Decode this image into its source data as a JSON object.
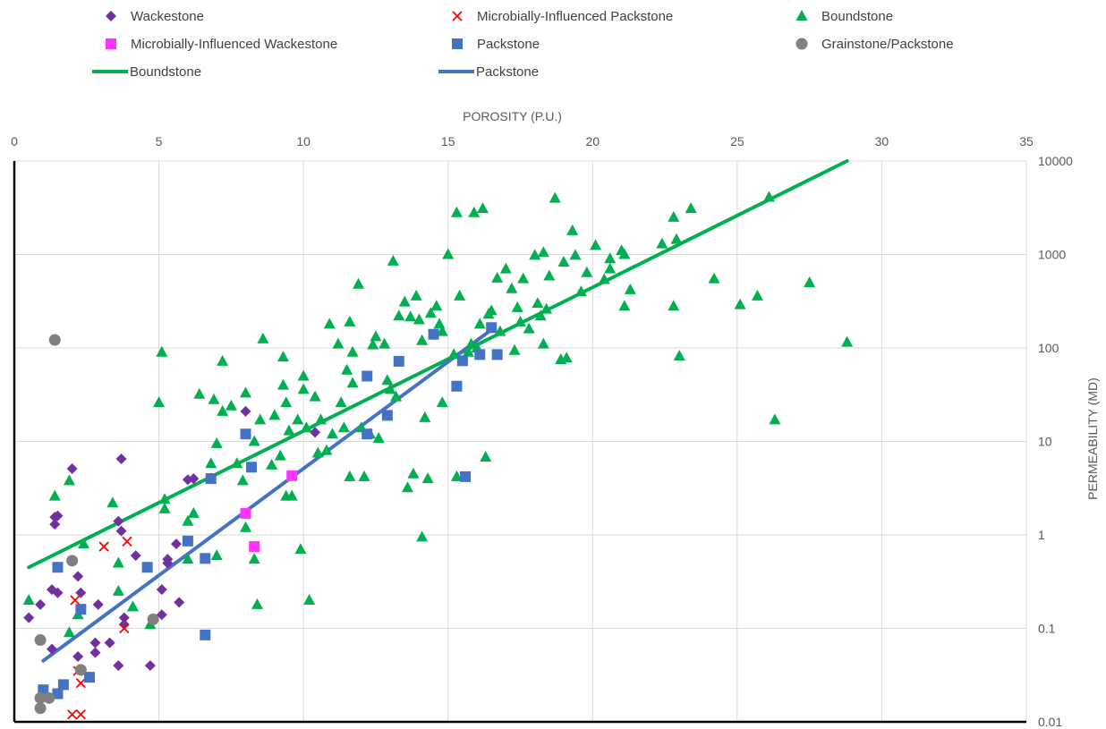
{
  "chart_data": {
    "type": "scatter",
    "title": "",
    "xlabel": "POROSITY (P.U.)",
    "ylabel": "PERMEABILITY (MD)",
    "xlim": [
      0,
      35
    ],
    "ylim": [
      0.01,
      10000
    ],
    "y_scale": "log",
    "x_axis_position": "top",
    "y_axis_position": "right",
    "grid": true,
    "legend_position": "top",
    "x_ticks": [
      "0",
      "5",
      "10",
      "15",
      "20",
      "25",
      "30",
      "35"
    ],
    "y_ticks": [
      "10000",
      "1000",
      "100",
      "10",
      "1",
      "0.1",
      "0.01"
    ],
    "colors": {
      "wackestone": "#7030A0",
      "mi_packstone": "#FF0000",
      "boundstone": "#00B050",
      "mi_wackestone": "#FF33FF",
      "packstone": "#4472C4",
      "grainstone_packstone": "#808080"
    },
    "series": [
      {
        "name": "Wackestone",
        "marker": "diamond",
        "color_key": "wackestone",
        "points": [
          [
            0.5,
            0.13
          ],
          [
            0.9,
            0.18
          ],
          [
            1.3,
            0.06
          ],
          [
            1.3,
            0.26
          ],
          [
            1.4,
            1.3
          ],
          [
            1.4,
            1.55
          ],
          [
            1.5,
            0.24
          ],
          [
            1.5,
            1.6
          ],
          [
            2,
            5.1
          ],
          [
            2.2,
            0.05
          ],
          [
            2.2,
            0.36
          ],
          [
            2.3,
            0.24
          ],
          [
            2.8,
            0.055
          ],
          [
            2.8,
            0.07
          ],
          [
            2.9,
            0.18
          ],
          [
            3.3,
            0.07
          ],
          [
            3.6,
            1.4
          ],
          [
            3.6,
            0.04
          ],
          [
            3.7,
            6.5
          ],
          [
            3.7,
            1.1
          ],
          [
            3.8,
            0.13
          ],
          [
            3.8,
            0.11
          ],
          [
            4.2,
            0.6
          ],
          [
            4.7,
            0.04
          ],
          [
            5.1,
            0.14
          ],
          [
            5.1,
            0.26
          ],
          [
            5.3,
            0.5
          ],
          [
            5.3,
            0.55
          ],
          [
            5.6,
            0.8
          ],
          [
            5.7,
            0.19
          ],
          [
            6,
            3.9
          ],
          [
            6.2,
            4.0
          ],
          [
            8,
            21
          ],
          [
            10.4,
            12.5
          ]
        ]
      },
      {
        "name": "Microbially-Influenced Packstone",
        "marker": "x",
        "color_key": "mi_packstone",
        "points": [
          [
            2,
            0.012
          ],
          [
            2.1,
            0.2
          ],
          [
            2.2,
            0.035
          ],
          [
            2.3,
            0.026
          ],
          [
            2.3,
            0.012
          ],
          [
            3.1,
            0.75
          ],
          [
            3.8,
            0.1
          ],
          [
            3.9,
            0.85
          ]
        ]
      },
      {
        "name": "Boundstone",
        "marker": "triangle",
        "color_key": "boundstone",
        "points": [
          [
            0.5,
            0.2
          ],
          [
            1.4,
            2.6
          ],
          [
            1.9,
            0.09
          ],
          [
            1.9,
            3.8
          ],
          [
            2.2,
            0.14
          ],
          [
            2.4,
            0.8
          ],
          [
            3.4,
            2.2
          ],
          [
            3.6,
            0.5
          ],
          [
            3.6,
            0.25
          ],
          [
            4.1,
            0.17
          ],
          [
            4.7,
            0.11
          ],
          [
            5,
            26
          ],
          [
            5.1,
            90
          ],
          [
            5.2,
            2.4
          ],
          [
            5.2,
            1.9
          ],
          [
            6,
            1.4
          ],
          [
            6,
            0.55
          ],
          [
            6.2,
            1.7
          ],
          [
            6.4,
            32
          ],
          [
            6.8,
            5.8
          ],
          [
            6.8,
            4.0
          ],
          [
            6.9,
            28
          ],
          [
            7,
            0.6
          ],
          [
            7,
            9.5
          ],
          [
            7.2,
            72
          ],
          [
            7.2,
            21
          ],
          [
            7.5,
            24
          ],
          [
            7.7,
            5.8
          ],
          [
            7.9,
            3.8
          ],
          [
            8,
            33
          ],
          [
            8,
            1.2
          ],
          [
            8.3,
            0.55
          ],
          [
            8.3,
            10
          ],
          [
            8.4,
            0.18
          ],
          [
            8.5,
            17
          ],
          [
            8.6,
            125
          ],
          [
            8.9,
            5.6
          ],
          [
            9,
            19
          ],
          [
            9.2,
            7
          ],
          [
            9.3,
            80
          ],
          [
            9.3,
            40
          ],
          [
            9.4,
            26
          ],
          [
            9.4,
            2.6
          ],
          [
            9.5,
            13
          ],
          [
            9.6,
            2.6
          ],
          [
            9.8,
            17
          ],
          [
            9.9,
            0.7
          ],
          [
            10,
            36
          ],
          [
            10,
            50
          ],
          [
            10.1,
            14
          ],
          [
            10.2,
            0.2
          ],
          [
            10.4,
            30
          ],
          [
            10.5,
            7.5
          ],
          [
            10.6,
            17
          ],
          [
            10.8,
            8
          ],
          [
            10.9,
            180
          ],
          [
            11,
            12
          ],
          [
            11.2,
            110
          ],
          [
            11.3,
            26
          ],
          [
            11.4,
            14
          ],
          [
            11.5,
            58
          ],
          [
            11.6,
            190
          ],
          [
            11.6,
            4.2
          ],
          [
            11.7,
            90
          ],
          [
            11.7,
            42
          ],
          [
            11.9,
            480
          ],
          [
            12,
            14
          ],
          [
            12.1,
            4.2
          ],
          [
            12.3,
            12
          ],
          [
            12.4,
            108
          ],
          [
            12.5,
            132
          ],
          [
            12.6,
            10.8
          ],
          [
            12.8,
            110
          ],
          [
            12.9,
            45
          ],
          [
            13,
            36
          ],
          [
            13.1,
            850
          ],
          [
            13.2,
            30
          ],
          [
            13.3,
            220
          ],
          [
            13.5,
            310
          ],
          [
            13.6,
            3.2
          ],
          [
            13.7,
            215
          ],
          [
            13.8,
            4.5
          ],
          [
            13.9,
            360
          ],
          [
            14,
            200
          ],
          [
            14.1,
            0.95
          ],
          [
            14.1,
            120
          ],
          [
            14.2,
            18
          ],
          [
            14.3,
            4.0
          ],
          [
            14.4,
            235
          ],
          [
            14.6,
            280
          ],
          [
            14.7,
            180
          ],
          [
            14.8,
            26
          ],
          [
            14.8,
            150
          ],
          [
            15,
            1000
          ],
          [
            15.2,
            85
          ],
          [
            15.3,
            4.2
          ],
          [
            15.3,
            2800
          ],
          [
            15.4,
            360
          ],
          [
            15.7,
            90
          ],
          [
            15.8,
            110
          ],
          [
            15.9,
            2800
          ],
          [
            16,
            100
          ],
          [
            16.1,
            180
          ],
          [
            16.2,
            3100
          ],
          [
            16.3,
            6.8
          ],
          [
            16.4,
            230
          ],
          [
            16.5,
            250
          ],
          [
            16.7,
            560
          ],
          [
            16.8,
            150
          ],
          [
            17,
            700
          ],
          [
            17.2,
            430
          ],
          [
            17.3,
            94
          ],
          [
            17.4,
            270
          ],
          [
            17.5,
            190
          ],
          [
            17.6,
            550
          ],
          [
            17.8,
            160
          ],
          [
            18,
            980
          ],
          [
            18.1,
            300
          ],
          [
            18.2,
            220
          ],
          [
            18.3,
            110
          ],
          [
            18.3,
            1050
          ],
          [
            18.4,
            260
          ],
          [
            18.5,
            590
          ],
          [
            18.7,
            4000
          ],
          [
            18.9,
            75
          ],
          [
            19,
            830
          ],
          [
            19.1,
            78
          ],
          [
            19.3,
            1800
          ],
          [
            19.4,
            980
          ],
          [
            19.6,
            400
          ],
          [
            19.8,
            640
          ],
          [
            20.1,
            1250
          ],
          [
            20.4,
            540
          ],
          [
            20.6,
            700
          ],
          [
            20.6,
            900
          ],
          [
            21,
            1100
          ],
          [
            21.1,
            1000
          ],
          [
            21.1,
            280
          ],
          [
            21.3,
            420
          ],
          [
            22.4,
            1300
          ],
          [
            22.8,
            280
          ],
          [
            22.8,
            2500
          ],
          [
            22.9,
            1450
          ],
          [
            23,
            82
          ],
          [
            23.4,
            3100
          ],
          [
            24.2,
            550
          ],
          [
            25.1,
            290
          ],
          [
            25.7,
            360
          ],
          [
            26.1,
            4100
          ],
          [
            26.3,
            17
          ],
          [
            27.5,
            500
          ],
          [
            28.8,
            115
          ]
        ]
      },
      {
        "name": "Microbially-Influenced Wackestone",
        "marker": "square",
        "color_key": "mi_wackestone",
        "points": [
          [
            8,
            1.7
          ],
          [
            8.3,
            0.75
          ],
          [
            9.6,
            4.3
          ]
        ]
      },
      {
        "name": "Packstone",
        "marker": "square",
        "color_key": "packstone",
        "points": [
          [
            1,
            0.022
          ],
          [
            1.5,
            0.02
          ],
          [
            1.5,
            0.45
          ],
          [
            1.7,
            0.025
          ],
          [
            2.3,
            0.16
          ],
          [
            2.6,
            0.03
          ],
          [
            4.6,
            0.45
          ],
          [
            6,
            0.86
          ],
          [
            6.6,
            0.56
          ],
          [
            6.6,
            0.085
          ],
          [
            6.8,
            4.0
          ],
          [
            8,
            12
          ],
          [
            8.2,
            5.3
          ],
          [
            12.2,
            12
          ],
          [
            12.2,
            50
          ],
          [
            12.9,
            19
          ],
          [
            13.3,
            72
          ],
          [
            14.5,
            140
          ],
          [
            15.3,
            39
          ],
          [
            15.5,
            73
          ],
          [
            15.6,
            4.2
          ],
          [
            16.1,
            85
          ],
          [
            16.5,
            165
          ],
          [
            16.7,
            85
          ]
        ]
      },
      {
        "name": "Grainstone/Packstone",
        "marker": "circle",
        "color_key": "grainstone_packstone",
        "points": [
          [
            0.9,
            0.018
          ],
          [
            0.9,
            0.075
          ],
          [
            0.9,
            0.014
          ],
          [
            1.2,
            0.018
          ],
          [
            1.4,
            122
          ],
          [
            2,
            0.53
          ],
          [
            2.3,
            0.036
          ],
          [
            4.8,
            0.125
          ]
        ]
      }
    ],
    "trendlines": [
      {
        "name": "Boundstone",
        "color_key": "boundstone",
        "from": [
          0.5,
          0.45
        ],
        "to": [
          28.8,
          10000
        ]
      },
      {
        "name": "Packstone",
        "color_key": "packstone",
        "from": [
          1,
          0.045
        ],
        "to": [
          16.6,
          165
        ]
      }
    ]
  }
}
